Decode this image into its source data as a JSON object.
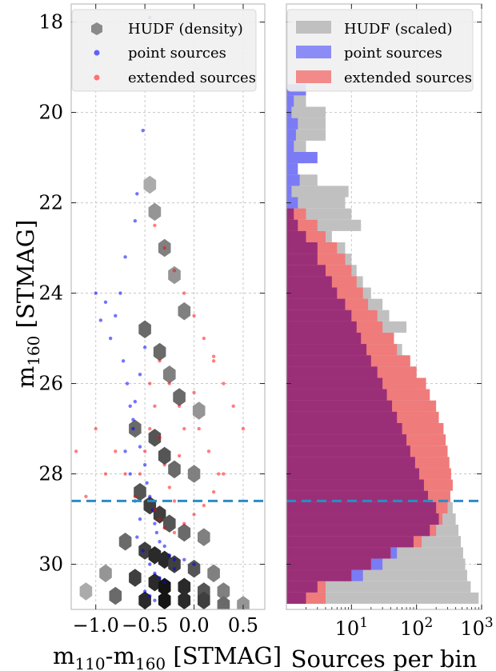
{
  "chart_data": [
    {
      "type": "scatter",
      "panel": "left",
      "xlabel_main": "m",
      "xlabel_sub1": "110",
      "xlabel_dash": "-m",
      "xlabel_sub2": "160",
      "xlabel_unit": " [STMAG]",
      "ylabel_main": "m",
      "ylabel_sub": "160",
      "ylabel_unit": " [STMAG]",
      "xlim": [
        -1.25,
        0.72
      ],
      "ylim": [
        31.0,
        17.6
      ],
      "y_inverted": true,
      "xticks": [
        -1.0,
        -0.5,
        0.0,
        0.5
      ],
      "xtick_labels": [
        "−1.0",
        "−0.5",
        "0.0",
        "0.5"
      ],
      "yticks": [
        18,
        20,
        22,
        24,
        26,
        28,
        30
      ],
      "ytick_labels": [
        "18",
        "20",
        "22",
        "24",
        "26",
        "28",
        "30"
      ],
      "grid": true,
      "legend_placement": "top-left",
      "legend": [
        "HUDF (density)",
        "point sources",
        "extended sources"
      ],
      "colors": {
        "density": "#555555",
        "point": "#0000ff",
        "extended": "#ff0000",
        "cutoff": "#2b8cc4"
      },
      "cutoff_line_y": 28.6,
      "series": [
        {
          "name": "HUDF (density)",
          "kind": "hexbin",
          "x": [
            -0.45,
            -0.4,
            -0.3,
            -0.2,
            -0.1,
            -0.5,
            -0.35,
            -0.25,
            -0.15,
            0.05,
            -0.6,
            -0.4,
            -0.3,
            -0.2,
            0.0,
            -0.55,
            -0.45,
            -0.35,
            -0.25,
            -0.1,
            0.1,
            -0.7,
            -0.5,
            -0.4,
            -0.3,
            -0.2,
            0.0,
            0.2,
            -0.9,
            -0.6,
            -0.4,
            -0.3,
            -0.1,
            0.1,
            0.3,
            -1.1,
            -0.8,
            -0.5,
            -0.3,
            -0.1,
            0.1,
            0.3,
            0.5
          ],
          "y": [
            21.6,
            22.2,
            23.0,
            23.6,
            24.4,
            24.8,
            25.3,
            25.8,
            26.3,
            26.6,
            27.0,
            27.2,
            27.6,
            27.9,
            28.0,
            28.4,
            28.7,
            28.9,
            29.1,
            29.3,
            29.4,
            29.5,
            29.7,
            29.8,
            29.9,
            30.0,
            30.1,
            30.2,
            30.2,
            30.3,
            30.4,
            30.5,
            30.5,
            30.6,
            30.6,
            30.6,
            30.7,
            30.8,
            30.8,
            30.8,
            30.8,
            30.9,
            30.9
          ],
          "density": [
            0.3,
            0.4,
            0.5,
            0.4,
            0.5,
            0.6,
            0.6,
            0.5,
            0.6,
            0.4,
            0.6,
            0.7,
            0.7,
            0.6,
            0.5,
            0.7,
            0.8,
            0.8,
            0.7,
            0.6,
            0.5,
            0.6,
            0.8,
            0.9,
            0.9,
            0.8,
            0.7,
            0.5,
            0.4,
            0.8,
            0.9,
            1.0,
            0.9,
            0.7,
            0.5,
            0.3,
            0.6,
            0.9,
            1.0,
            0.9,
            0.8,
            0.6,
            0.4
          ]
        },
        {
          "name": "point sources",
          "kind": "scatter",
          "x": [
            -0.45,
            -0.52,
            -0.58,
            -0.6,
            -0.7,
            -0.75,
            -0.8,
            -0.85,
            -0.9,
            -0.95,
            -1.0,
            -0.72,
            -0.68,
            -0.65,
            -0.62,
            -0.55,
            -0.5,
            -0.48,
            -0.45,
            -0.42,
            -0.4,
            -0.38,
            -0.35,
            -0.3,
            -0.25,
            -0.2,
            -0.55,
            -0.6,
            -0.65,
            -0.7,
            -0.58,
            -0.52,
            -0.45,
            -0.4,
            -0.35,
            -0.3,
            -0.2,
            -0.1,
            0.0,
            -0.5,
            -0.55,
            -0.6,
            -0.62,
            -0.5,
            -0.45,
            -0.4
          ],
          "y": [
            17.9,
            20.4,
            21.8,
            22.4,
            23.2,
            24.0,
            24.5,
            25.0,
            24.2,
            24.6,
            24.0,
            25.5,
            26.0,
            26.5,
            27.0,
            27.4,
            27.8,
            28.2,
            28.5,
            28.8,
            29.1,
            29.3,
            29.5,
            29.6,
            29.8,
            29.9,
            29.0,
            28.6,
            28.0,
            27.5,
            29.4,
            29.7,
            30.0,
            30.2,
            30.3,
            30.4,
            30.1,
            29.9,
            30.0,
            25.2,
            25.8,
            26.4,
            26.8,
            30.6,
            30.7,
            30.8
          ]
        },
        {
          "name": "extended sources",
          "kind": "scatter",
          "x": [
            -0.4,
            -0.3,
            -0.2,
            -0.1,
            0.0,
            0.1,
            0.2,
            0.3,
            0.4,
            0.5,
            -0.35,
            -0.25,
            -0.15,
            0.05,
            0.15,
            0.25,
            -0.45,
            -0.5,
            -0.55,
            -0.6,
            -0.7,
            -0.8,
            -0.9,
            -1.0,
            -1.1,
            -1.2,
            -0.4,
            -0.35,
            -0.3,
            -0.2,
            -0.1,
            0.0,
            0.1,
            0.2,
            0.3,
            -0.45,
            -0.4,
            -0.35,
            -0.3,
            -0.25,
            -0.2,
            -0.15,
            -0.1,
            0.0,
            0.2
          ],
          "y": [
            22.5,
            23.0,
            23.5,
            24.0,
            24.5,
            25.0,
            25.5,
            26.0,
            26.5,
            27.0,
            25.5,
            26.0,
            26.5,
            27.0,
            27.5,
            28.0,
            27.0,
            27.5,
            28.0,
            28.5,
            28.0,
            27.5,
            28.0,
            27.0,
            28.5,
            27.5,
            28.8,
            29.0,
            29.2,
            29.3,
            29.1,
            28.9,
            28.7,
            28.4,
            28.0,
            26.0,
            26.5,
            27.2,
            27.8,
            28.3,
            28.6,
            27.6,
            27.0,
            26.2,
            25.4
          ]
        }
      ]
    },
    {
      "type": "bar",
      "orientation": "horizontal",
      "panel": "right",
      "xlabel": "Sources per bin",
      "xscale": "log",
      "xlim": [
        1,
        1000
      ],
      "xticks": [
        10,
        100,
        1000
      ],
      "xtick_labels": [
        {
          "base": "10",
          "exp": "1"
        },
        {
          "base": "10",
          "exp": "2"
        },
        {
          "base": "10",
          "exp": "3"
        }
      ],
      "ylim": [
        31.0,
        17.6
      ],
      "y_inverted": true,
      "yticks": [
        18,
        20,
        22,
        24,
        26,
        28,
        30
      ],
      "grid": true,
      "legend_placement": "top-left",
      "legend": [
        "HUDF (scaled)",
        "point sources",
        "extended sources"
      ],
      "colors": {
        "hudf": "#c0c0c0",
        "point": "#7b7bf5",
        "extended": "#f07b7b",
        "overlap": "#9a2f78",
        "cutoff": "#2b8cc4"
      },
      "cutoff_line_y": 28.6,
      "bin_width": 0.25,
      "bins": [
        19.5,
        19.75,
        20.0,
        20.25,
        20.5,
        20.75,
        21.0,
        21.25,
        21.5,
        21.75,
        22.0,
        22.25,
        22.5,
        22.75,
        23.0,
        23.25,
        23.5,
        23.75,
        24.0,
        24.25,
        24.5,
        24.75,
        25.0,
        25.25,
        25.5,
        25.75,
        26.0,
        26.25,
        26.5,
        26.75,
        27.0,
        27.25,
        27.5,
        27.75,
        28.0,
        28.25,
        28.5,
        28.75,
        29.0,
        29.25,
        29.5,
        29.75,
        30.0,
        30.25,
        30.5,
        30.75
      ],
      "series": [
        {
          "name": "HUDF (scaled)",
          "values": [
            1.2,
            2,
            4,
            4,
            4,
            2,
            2,
            1.3,
            3,
            9,
            8,
            10,
            14,
            5,
            8,
            10,
            12,
            15,
            20,
            30,
            38,
            70,
            40,
            60,
            70,
            100,
            110,
            130,
            140,
            160,
            180,
            200,
            220,
            240,
            270,
            300,
            330,
            360,
            400,
            440,
            480,
            520,
            560,
            600,
            680,
            900
          ]
        },
        {
          "name": "point sources",
          "values": [
            2,
            1.3,
            1.2,
            1.5,
            1.4,
            1.3,
            3,
            1.5,
            1.6,
            1.2,
            1.5,
            1.3,
            1.5,
            2,
            3,
            3,
            4,
            5,
            6,
            8,
            10,
            12,
            14,
            17,
            20,
            25,
            30,
            35,
            42,
            50,
            60,
            70,
            80,
            95,
            110,
            130,
            150,
            200,
            220,
            160,
            90,
            50,
            30,
            15,
            3,
            2
          ]
        },
        {
          "name": "extended sources",
          "values": [
            1,
            1,
            1,
            1,
            1,
            1,
            1,
            1,
            1,
            1,
            1,
            2,
            3,
            4,
            6,
            8,
            10,
            12,
            15,
            18,
            25,
            30,
            45,
            50,
            80,
            100,
            140,
            160,
            200,
            220,
            260,
            280,
            300,
            320,
            340,
            360,
            330,
            300,
            250,
            200,
            120,
            40,
            20,
            10,
            4,
            4
          ]
        }
      ]
    }
  ]
}
